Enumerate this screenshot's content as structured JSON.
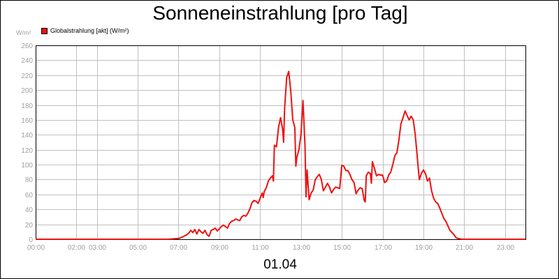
{
  "colors": {
    "series": "#ee1111",
    "grid": "#c0c0c0",
    "axis": "#000000",
    "tick_text": "#a0a0a0",
    "background": "#ffffff"
  },
  "chart_data": {
    "type": "line",
    "title": "Sonneneinstrahlung [pro Tag]",
    "ylabel": "W/m²",
    "xlabel": "01.04",
    "ylim": [
      0,
      260
    ],
    "xlim": [
      0,
      24
    ],
    "yticks": [
      0,
      20,
      40,
      60,
      80,
      100,
      120,
      140,
      160,
      180,
      200,
      220,
      240,
      260
    ],
    "xticks": [
      {
        "x": 0,
        "label": "00:00"
      },
      {
        "x": 2,
        "label": "02:00"
      },
      {
        "x": 3,
        "label": "03:00"
      },
      {
        "x": 5,
        "label": "05:00"
      },
      {
        "x": 7,
        "label": "07:00"
      },
      {
        "x": 9,
        "label": "09:00"
      },
      {
        "x": 11,
        "label": "11:00"
      },
      {
        "x": 13,
        "label": "13:00"
      },
      {
        "x": 15,
        "label": "15:00"
      },
      {
        "x": 17,
        "label": "17:00"
      },
      {
        "x": 19,
        "label": "19:00"
      },
      {
        "x": 21,
        "label": "21:00"
      },
      {
        "x": 23,
        "label": "23:00"
      }
    ],
    "grid": true,
    "legend": "top-left",
    "series": [
      {
        "name": "Globalstrahlung [akt] (W/m²)",
        "points": [
          [
            0,
            0
          ],
          [
            6.5,
            0
          ],
          [
            7.0,
            1
          ],
          [
            7.2,
            3
          ],
          [
            7.4,
            6
          ],
          [
            7.5,
            8
          ],
          [
            7.6,
            12
          ],
          [
            7.7,
            9
          ],
          [
            7.8,
            13
          ],
          [
            7.9,
            7
          ],
          [
            8.0,
            13
          ],
          [
            8.1,
            10
          ],
          [
            8.2,
            8
          ],
          [
            8.3,
            12
          ],
          [
            8.4,
            6
          ],
          [
            8.5,
            4
          ],
          [
            8.6,
            12
          ],
          [
            8.7,
            13
          ],
          [
            8.8,
            15
          ],
          [
            8.9,
            11
          ],
          [
            9.0,
            14
          ],
          [
            9.1,
            17
          ],
          [
            9.2,
            19
          ],
          [
            9.3,
            17
          ],
          [
            9.4,
            15
          ],
          [
            9.5,
            21
          ],
          [
            9.6,
            24
          ],
          [
            9.7,
            25
          ],
          [
            9.8,
            27
          ],
          [
            9.9,
            26
          ],
          [
            10.0,
            25
          ],
          [
            10.1,
            30
          ],
          [
            10.2,
            32
          ],
          [
            10.3,
            31
          ],
          [
            10.4,
            35
          ],
          [
            10.5,
            41
          ],
          [
            10.6,
            49
          ],
          [
            10.7,
            52
          ],
          [
            10.8,
            51
          ],
          [
            10.9,
            48
          ],
          [
            11.0,
            55
          ],
          [
            11.1,
            62
          ],
          [
            11.15,
            56
          ],
          [
            11.2,
            64
          ],
          [
            11.3,
            69
          ],
          [
            11.4,
            78
          ],
          [
            11.5,
            82
          ],
          [
            11.6,
            85
          ],
          [
            11.65,
            78
          ],
          [
            11.7,
            126
          ],
          [
            11.8,
            124
          ],
          [
            11.9,
            150
          ],
          [
            12.0,
            163
          ],
          [
            12.1,
            148
          ],
          [
            12.15,
            130
          ],
          [
            12.2,
            175
          ],
          [
            12.3,
            217
          ],
          [
            12.4,
            225
          ],
          [
            12.5,
            199
          ],
          [
            12.6,
            160
          ],
          [
            12.7,
            150
          ],
          [
            12.75,
            98
          ],
          [
            12.8,
            110
          ],
          [
            12.9,
            120
          ],
          [
            13.0,
            140
          ],
          [
            13.1,
            186
          ],
          [
            13.2,
            125
          ],
          [
            13.25,
            57
          ],
          [
            13.3,
            93
          ],
          [
            13.4,
            53
          ],
          [
            13.5,
            62
          ],
          [
            13.6,
            66
          ],
          [
            13.7,
            80
          ],
          [
            13.8,
            84
          ],
          [
            13.9,
            87
          ],
          [
            14.0,
            80
          ],
          [
            14.1,
            65
          ],
          [
            14.2,
            70
          ],
          [
            14.3,
            75
          ],
          [
            14.4,
            70
          ],
          [
            14.5,
            62
          ],
          [
            14.6,
            67
          ],
          [
            14.7,
            70
          ],
          [
            14.8,
            69
          ],
          [
            14.9,
            68
          ],
          [
            15.0,
            99
          ],
          [
            15.1,
            98
          ],
          [
            15.2,
            92
          ],
          [
            15.3,
            92
          ],
          [
            15.4,
            87
          ],
          [
            15.5,
            80
          ],
          [
            15.6,
            76
          ],
          [
            15.7,
            61
          ],
          [
            15.8,
            66
          ],
          [
            15.9,
            69
          ],
          [
            16.0,
            68
          ],
          [
            16.1,
            52
          ],
          [
            16.15,
            50
          ],
          [
            16.2,
            85
          ],
          [
            16.3,
            90
          ],
          [
            16.4,
            88
          ],
          [
            16.45,
            75
          ],
          [
            16.5,
            104
          ],
          [
            16.6,
            95
          ],
          [
            16.7,
            85
          ],
          [
            16.8,
            87
          ],
          [
            16.9,
            86
          ],
          [
            17.0,
            86
          ],
          [
            17.1,
            76
          ],
          [
            17.2,
            78
          ],
          [
            17.3,
            86
          ],
          [
            17.4,
            90
          ],
          [
            17.5,
            100
          ],
          [
            17.6,
            112
          ],
          [
            17.7,
            116
          ],
          [
            17.8,
            133
          ],
          [
            17.9,
            155
          ],
          [
            18.0,
            163
          ],
          [
            18.1,
            172
          ],
          [
            18.2,
            166
          ],
          [
            18.3,
            160
          ],
          [
            18.4,
            165
          ],
          [
            18.5,
            160
          ],
          [
            18.6,
            140
          ],
          [
            18.7,
            110
          ],
          [
            18.8,
            80
          ],
          [
            18.9,
            88
          ],
          [
            19.0,
            93
          ],
          [
            19.1,
            88
          ],
          [
            19.2,
            78
          ],
          [
            19.3,
            82
          ],
          [
            19.4,
            65
          ],
          [
            19.5,
            55
          ],
          [
            19.6,
            50
          ],
          [
            19.7,
            48
          ],
          [
            19.8,
            42
          ],
          [
            19.9,
            35
          ],
          [
            20.0,
            28
          ],
          [
            20.1,
            24
          ],
          [
            20.2,
            18
          ],
          [
            20.3,
            12
          ],
          [
            20.4,
            9
          ],
          [
            20.5,
            6
          ],
          [
            20.6,
            2
          ],
          [
            20.7,
            1
          ],
          [
            20.9,
            0
          ],
          [
            24,
            0
          ]
        ]
      }
    ]
  }
}
